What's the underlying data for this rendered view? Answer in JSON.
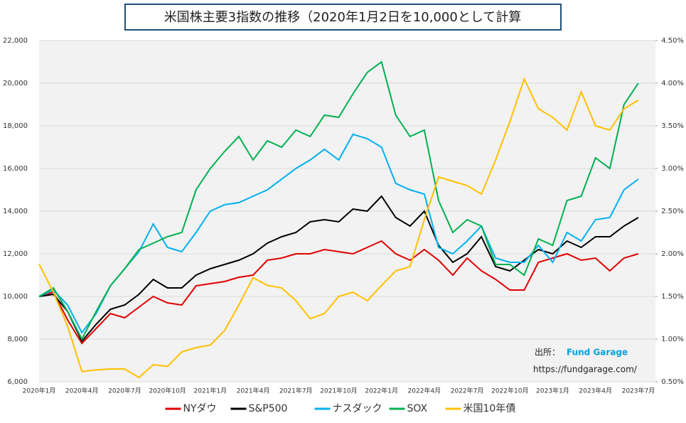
{
  "chart_data": {
    "type": "line",
    "title": "米国株主要3指数の推移（2020年1月2日を10,000として計算",
    "source_label": "出所：",
    "source_name": "Fund Garage",
    "url": "https://fundgarage.com/",
    "categories": [
      "2020年1月",
      null,
      null,
      "2020年4月",
      null,
      null,
      "2020年7月",
      null,
      null,
      "2020年10月",
      null,
      null,
      "2021年1月",
      null,
      null,
      "2021年4月",
      null,
      null,
      "2021年7月",
      null,
      null,
      "2021年10月",
      null,
      null,
      "2022年1月",
      null,
      null,
      "2022年4月",
      null,
      null,
      "2022年7月",
      null,
      null,
      "2022年10月",
      null,
      null,
      "2023年1月",
      null,
      null,
      "2023年4月",
      null,
      null,
      "2023年7月"
    ],
    "ylim": [
      6000,
      22000
    ],
    "yticks": [
      {
        "value": 6000,
        "label": "6,000"
      },
      {
        "value": 8000,
        "label": "8,000"
      },
      {
        "value": 10000,
        "label": "10,000"
      },
      {
        "value": 12000,
        "label": "12,000"
      },
      {
        "value": 14000,
        "label": "14,000"
      },
      {
        "value": 16000,
        "label": "16,000"
      },
      {
        "value": 18000,
        "label": "18,000"
      },
      {
        "value": 20000,
        "label": "20,000"
      },
      {
        "value": 22000,
        "label": "22,000"
      }
    ],
    "y2lim": [
      0.5,
      4.5
    ],
    "y2ticks": [
      {
        "value": 0.5,
        "label": "0.50%"
      },
      {
        "value": 1,
        "label": "1.00%"
      },
      {
        "value": 1.5,
        "label": "1.50%"
      },
      {
        "value": 2,
        "label": "2.00%"
      },
      {
        "value": 2.5,
        "label": "2.50%"
      },
      {
        "value": 3,
        "label": "3.00%"
      },
      {
        "value": 3.5,
        "label": "3.50%"
      },
      {
        "value": 4,
        "label": "4.00%"
      },
      {
        "value": 4.5,
        "label": "4.50%"
      }
    ],
    "grid": true,
    "legend": "bottom",
    "series": [
      {
        "name": "NYダウ",
        "color": "#e00000",
        "values": [
          10000,
          10200,
          8900,
          7800,
          8500,
          9200,
          9000,
          9500,
          10000,
          9700,
          9600,
          10500,
          10600,
          10700,
          10900,
          11000,
          11700,
          11800,
          12000,
          12000,
          12200,
          12100,
          12000,
          12300,
          12600,
          12000,
          11700,
          12200,
          11700,
          11000,
          11800,
          11200,
          10800,
          10300,
          10300,
          11600,
          11800,
          12000,
          11700,
          11800,
          11200,
          11800,
          12000
        ]
      },
      {
        "name": "S&P500",
        "color": "#000000",
        "values": [
          10000,
          10100,
          9300,
          7900,
          8700,
          9400,
          9600,
          10100,
          10800,
          10400,
          10400,
          11000,
          11300,
          11500,
          11700,
          12000,
          12500,
          12800,
          13000,
          13500,
          13600,
          13500,
          14100,
          14000,
          14700,
          13700,
          13300,
          14000,
          12400,
          11600,
          12000,
          12800,
          11400,
          11200,
          11700,
          12200,
          12000,
          12600,
          12300,
          12800,
          12800,
          13300,
          13700
        ]
      },
      {
        "name": "ナスダック",
        "color": "#00b0f0",
        "values": [
          10000,
          10300,
          9600,
          8300,
          9200,
          10500,
          11300,
          12100,
          13400,
          12300,
          12100,
          13000,
          14000,
          14300,
          14400,
          14700,
          15000,
          15500,
          16000,
          16400,
          16900,
          16400,
          17600,
          17400,
          17000,
          15300,
          15000,
          14800,
          12300,
          12000,
          12600,
          13300,
          11800,
          11600,
          11600,
          12400,
          11600,
          13000,
          12600,
          13600,
          13700,
          15000,
          15500
        ]
      },
      {
        "name": "SOX",
        "color": "#00b050",
        "values": [
          10000,
          10400,
          9300,
          8000,
          9300,
          10500,
          11300,
          12200,
          12500,
          12800,
          13000,
          15000,
          16000,
          16800,
          17500,
          16400,
          17300,
          17000,
          17800,
          17500,
          18500,
          18400,
          19500,
          20500,
          21000,
          18500,
          17500,
          17800,
          14500,
          13000,
          13600,
          13300,
          11500,
          11500,
          11000,
          12700,
          12400,
          14500,
          14700,
          16500,
          16000,
          19000,
          20000
        ]
      },
      {
        "name": "米国10年債",
        "color": "#ffc000",
        "axis": "y2",
        "values": [
          1.88,
          1.55,
          1.15,
          0.62,
          0.64,
          0.65,
          0.65,
          0.55,
          0.7,
          0.68,
          0.85,
          0.9,
          0.93,
          1.1,
          1.4,
          1.72,
          1.63,
          1.6,
          1.45,
          1.24,
          1.3,
          1.5,
          1.55,
          1.45,
          1.63,
          1.8,
          1.85,
          2.4,
          2.9,
          2.85,
          2.8,
          2.7,
          3.1,
          3.55,
          4.05,
          3.7,
          3.6,
          3.45,
          3.9,
          3.5,
          3.45,
          3.7,
          3.8
        ]
      }
    ]
  }
}
